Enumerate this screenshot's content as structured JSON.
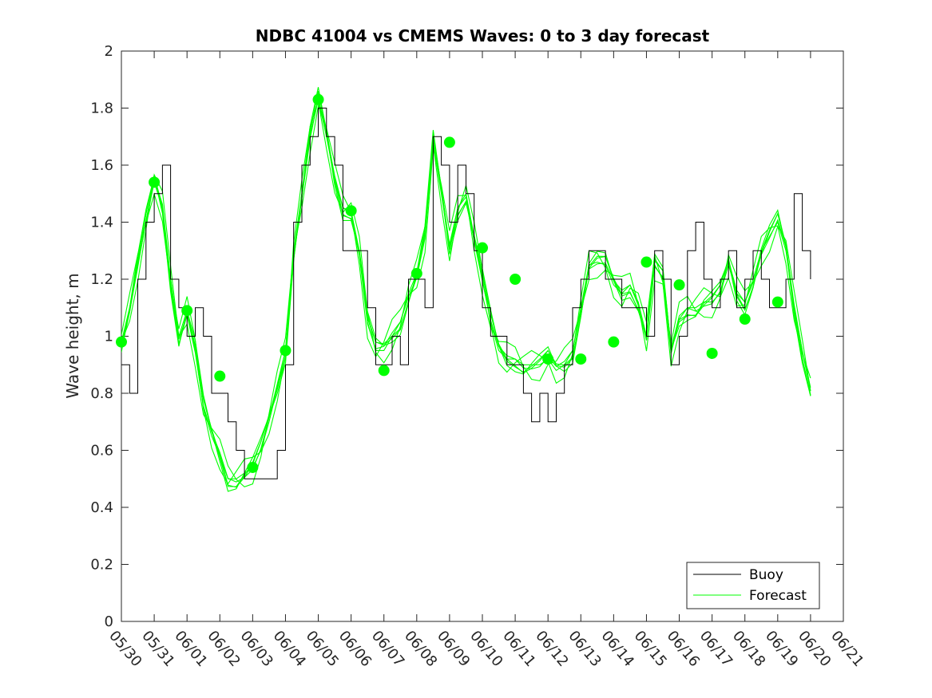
{
  "chart_data": {
    "type": "line",
    "title": "NDBC 41004 vs CMEMS Waves: 0 to 3 day forecast",
    "xlabel": "",
    "ylabel": "Wave height, m",
    "ylim": [
      0,
      2
    ],
    "xlim": [
      "05/30",
      "06/21"
    ],
    "ytick_labels": [
      "0",
      "0.2",
      "0.4",
      "0.6",
      "0.8",
      "1",
      "1.2",
      "1.4",
      "1.6",
      "1.8",
      "2"
    ],
    "xtick_labels": [
      "05/30",
      "05/31",
      "06/01",
      "06/02",
      "06/03",
      "06/04",
      "06/05",
      "06/06",
      "06/07",
      "06/08",
      "06/09",
      "06/10",
      "06/11",
      "06/12",
      "06/13",
      "06/14",
      "06/15",
      "06/16",
      "06/17",
      "06/18",
      "06/19",
      "06/20",
      "06/21"
    ],
    "legend": {
      "position": "bottom-right",
      "entries": [
        "Buoy",
        "Forecast"
      ]
    },
    "grid": false,
    "colors": {
      "buoy": "#000000",
      "forecast": "#00ff00"
    },
    "series": [
      {
        "name": "Buoy",
        "style": "line",
        "x": [
          0.0,
          0.25,
          0.5,
          0.75,
          1.0,
          1.25,
          1.5,
          1.75,
          2.0,
          2.25,
          2.5,
          2.75,
          3.0,
          3.25,
          3.5,
          3.75,
          4.0,
          4.25,
          4.5,
          4.75,
          5.0,
          5.25,
          5.5,
          5.75,
          6.0,
          6.25,
          6.5,
          6.75,
          7.0,
          7.25,
          7.5,
          7.75,
          8.0,
          8.25,
          8.5,
          8.75,
          9.0,
          9.25,
          9.5,
          9.75,
          10.0,
          10.25,
          10.5,
          10.75,
          11.0,
          11.25,
          11.5,
          11.75,
          12.0,
          12.25,
          12.5,
          12.75,
          13.0,
          13.25,
          13.5,
          13.75,
          14.0,
          14.25,
          14.5,
          14.75,
          15.0,
          15.25,
          15.5,
          15.75,
          16.0,
          16.25,
          16.5,
          16.75,
          17.0,
          17.25,
          17.5,
          17.75,
          18.0,
          18.25,
          18.5,
          18.75,
          19.0,
          19.25,
          19.5,
          19.75,
          20.0,
          20.25,
          20.5,
          20.75,
          21.0
        ],
        "y": [
          0.9,
          0.8,
          1.2,
          1.4,
          1.5,
          1.6,
          1.2,
          1.1,
          1.0,
          1.1,
          1.0,
          0.8,
          0.8,
          0.7,
          0.6,
          0.5,
          0.5,
          0.5,
          0.5,
          0.6,
          0.9,
          1.4,
          1.6,
          1.7,
          1.8,
          1.7,
          1.6,
          1.3,
          1.3,
          1.3,
          1.1,
          0.9,
          0.9,
          1.0,
          0.9,
          1.2,
          1.2,
          1.1,
          1.7,
          1.6,
          1.4,
          1.6,
          1.5,
          1.3,
          1.1,
          1.0,
          1.0,
          0.9,
          0.9,
          0.8,
          0.7,
          0.8,
          0.7,
          0.8,
          0.9,
          1.1,
          1.2,
          1.3,
          1.3,
          1.2,
          1.2,
          1.1,
          1.1,
          1.1,
          1.0,
          1.3,
          1.2,
          0.9,
          1.0,
          1.3,
          1.4,
          1.2,
          1.1,
          1.2,
          1.3,
          1.1,
          1.2,
          1.3,
          1.2,
          1.1,
          1.1,
          1.2,
          1.5,
          1.3,
          1.2
        ]
      },
      {
        "name": "Forecast",
        "style": "line",
        "x": [
          0.0,
          0.25,
          0.5,
          0.75,
          1.0,
          1.25,
          1.5,
          1.75,
          2.0,
          2.25,
          2.5,
          2.75,
          3.0,
          3.25,
          3.5,
          3.75,
          4.0,
          4.25,
          4.5,
          4.75,
          5.0,
          5.25,
          5.5,
          5.75,
          6.0,
          6.25,
          6.5,
          6.75,
          7.0,
          7.25,
          7.5,
          7.75,
          8.0,
          8.25,
          8.5,
          8.75,
          9.0,
          9.25,
          9.5,
          9.75,
          10.0,
          10.25,
          10.5,
          10.75,
          11.0,
          11.25,
          11.5,
          11.75,
          12.0,
          12.25,
          12.5,
          12.75,
          13.0,
          13.25,
          13.5,
          13.75,
          14.0,
          14.25,
          14.5,
          14.75,
          15.0,
          15.25,
          15.5,
          15.75,
          16.0,
          16.25,
          16.5,
          16.75,
          17.0,
          17.25,
          17.5,
          17.75,
          18.0,
          18.25,
          18.5,
          18.75,
          19.0,
          19.25,
          19.5,
          19.75,
          20.0,
          20.25,
          20.5,
          20.75,
          21.0
        ],
        "y": [
          0.98,
          1.1,
          1.25,
          1.4,
          1.54,
          1.45,
          1.2,
          1.0,
          1.09,
          0.95,
          0.75,
          0.65,
          0.58,
          0.5,
          0.5,
          0.52,
          0.54,
          0.6,
          0.7,
          0.82,
          0.95,
          1.3,
          1.5,
          1.7,
          1.83,
          1.7,
          1.55,
          1.45,
          1.44,
          1.3,
          1.05,
          0.95,
          0.95,
          1.0,
          1.05,
          1.15,
          1.22,
          1.35,
          1.68,
          1.5,
          1.31,
          1.45,
          1.5,
          1.35,
          1.2,
          1.05,
          0.95,
          0.92,
          0.92,
          0.9,
          0.9,
          0.9,
          0.92,
          0.88,
          0.9,
          0.95,
          1.1,
          1.25,
          1.26,
          1.25,
          1.18,
          1.15,
          1.18,
          1.12,
          1.0,
          1.25,
          1.2,
          0.94,
          1.06,
          1.1,
          1.1,
          1.12,
          1.12,
          1.15,
          1.25,
          1.15,
          1.12,
          1.2,
          1.3,
          1.35,
          1.4,
          1.3,
          1.1,
          0.95,
          0.82
        ]
      },
      {
        "name": "",
        "style": "markers",
        "x": [
          0,
          1,
          2,
          3,
          4,
          5,
          6,
          7,
          8,
          9,
          10,
          11,
          12,
          13,
          14,
          15,
          16,
          17,
          18,
          19,
          20
        ],
        "y": [
          0.98,
          1.54,
          1.09,
          0.86,
          0.54,
          0.95,
          1.83,
          1.44,
          0.88,
          1.22,
          1.68,
          1.31,
          1.2,
          0.92,
          0.92,
          0.98,
          1.26,
          1.18,
          0.94,
          1.06,
          1.12
        ]
      }
    ]
  }
}
